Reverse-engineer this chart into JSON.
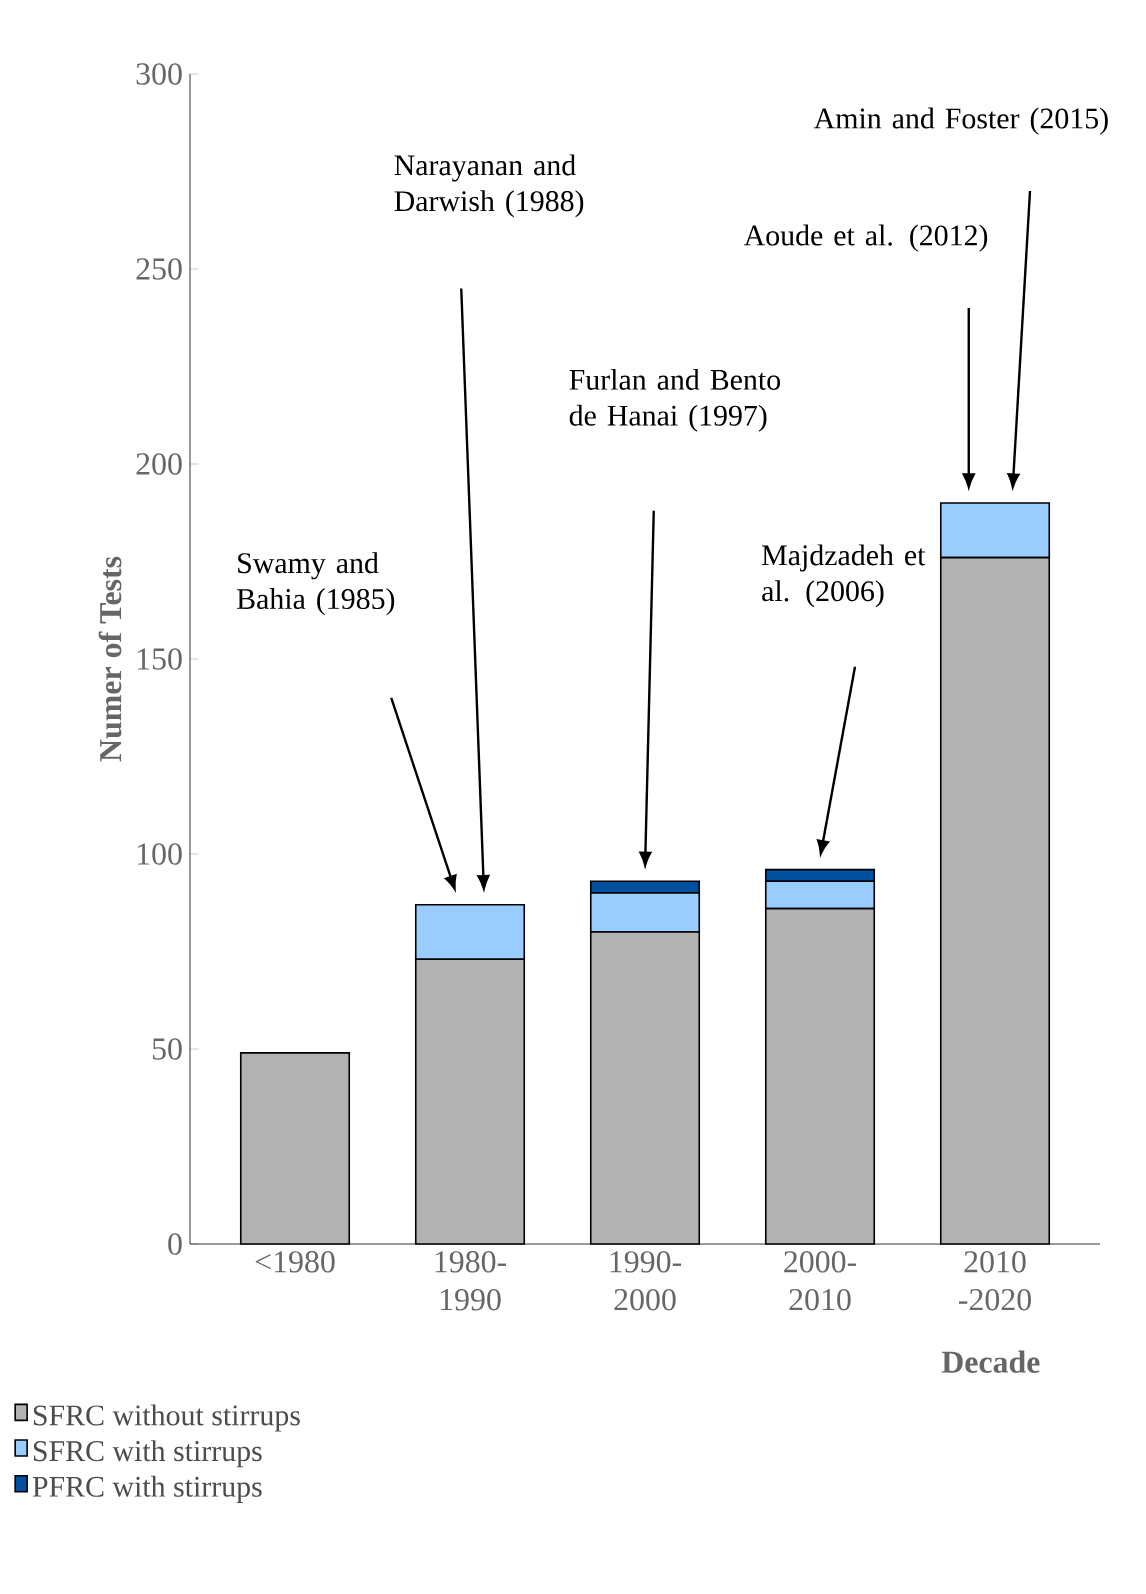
{
  "chart_data": {
    "type": "bar",
    "stacked": true,
    "ylabel": "Numer of Tests",
    "xlabel": "Decade",
    "categories": [
      "<1980",
      "1980-1990",
      "1990-2000",
      "2000-2010",
      "2010 -2020"
    ],
    "series": [
      {
        "name": "SFRC without stirrups",
        "color": "#b2b2b2",
        "values": [
          49,
          73,
          80,
          86,
          176
        ]
      },
      {
        "name": "SFRC with stirrups",
        "color": "#99ccff",
        "values": [
          0,
          14,
          10,
          7,
          14
        ]
      },
      {
        "name": "PFRC with stirrups",
        "color": "#0050a0",
        "values": [
          0,
          0,
          3,
          3,
          0
        ]
      }
    ],
    "ylim": [
      0,
      300
    ],
    "yticks": [
      0,
      50,
      100,
      150,
      200,
      250,
      300
    ],
    "grid": false,
    "legend": "bottom left",
    "annotations": [
      "Swamy and Bahia (1985)",
      "Narayanan and Darwish (1988)",
      "Furlan and Bento de Hanai (1997)",
      "Majdzadeh et al. (2006)",
      "Aoude et al. (2012)",
      "Amin and Foster (2015)"
    ]
  }
}
